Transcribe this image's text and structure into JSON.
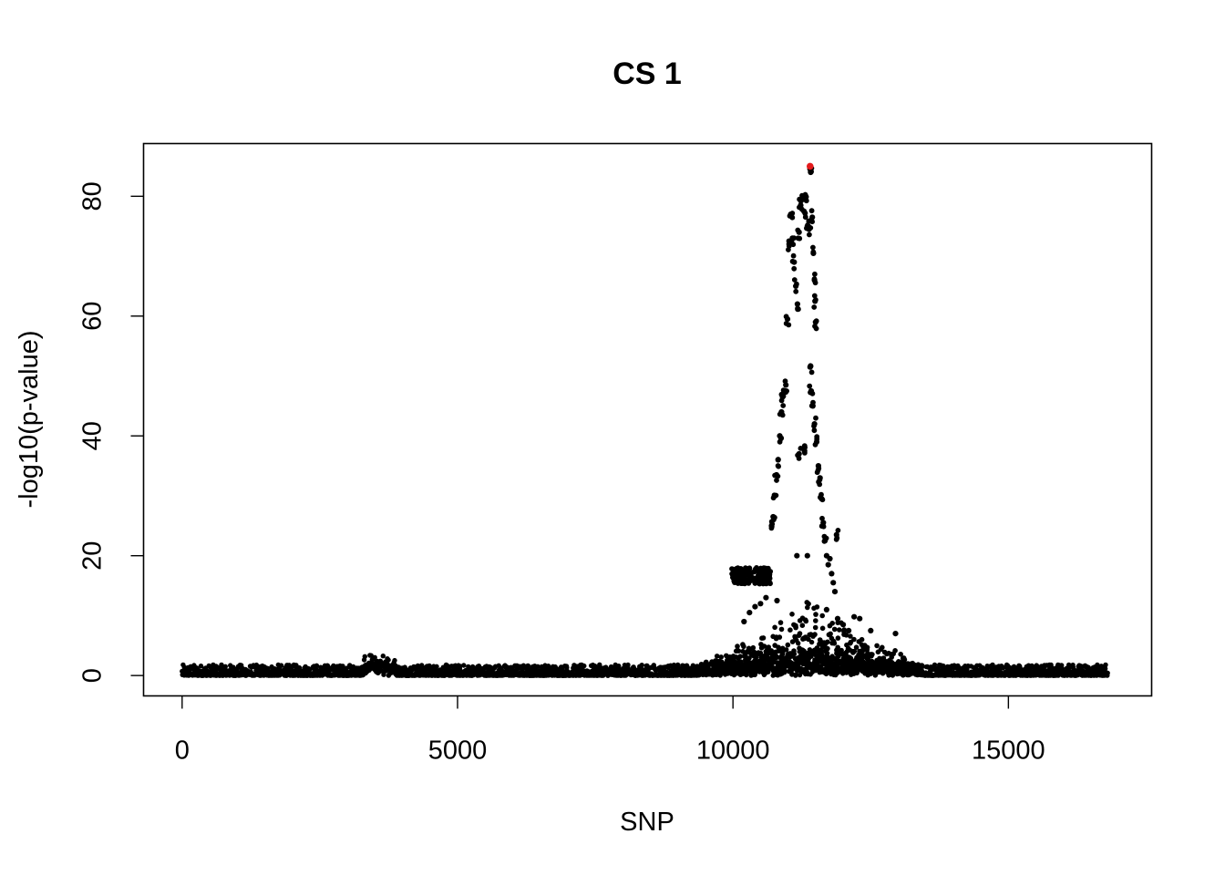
{
  "chart_data": {
    "type": "scatter",
    "title": "CS 1",
    "xlabel": "SNP",
    "ylabel": "-log10(p-value)",
    "xlim": [
      -700,
      17600
    ],
    "ylim": [
      -3.4,
      88.8
    ],
    "x_ticks": [
      0,
      5000,
      10000,
      15000
    ],
    "x_tick_labels": [
      "0",
      "5000",
      "10000",
      "15000"
    ],
    "y_ticks": [
      0,
      20,
      40,
      60,
      80
    ],
    "y_tick_labels": [
      "0",
      "20",
      "40",
      "60",
      "80"
    ],
    "grid": false,
    "legend": "none",
    "colors": {
      "points": "#000000",
      "highlight": "#e41a1c"
    },
    "n_snps": 16800,
    "highlighted_point": {
      "x": 11400,
      "y": 85.0
    },
    "peak_points": [
      {
        "x": 10010,
        "y": 16.8
      },
      {
        "x": 10050,
        "y": 16.0
      },
      {
        "x": 10100,
        "y": 17.1
      },
      {
        "x": 10150,
        "y": 15.6
      },
      {
        "x": 10200,
        "y": 16.9
      },
      {
        "x": 10250,
        "y": 15.9
      },
      {
        "x": 10300,
        "y": 17.2
      },
      {
        "x": 10350,
        "y": 16.2
      },
      {
        "x": 10400,
        "y": 17.5
      },
      {
        "x": 10450,
        "y": 16.0
      },
      {
        "x": 10500,
        "y": 17.8
      },
      {
        "x": 10550,
        "y": 16.4
      },
      {
        "x": 10600,
        "y": 17.6
      },
      {
        "x": 10650,
        "y": 15.8
      },
      {
        "x": 10700,
        "y": 25.0
      },
      {
        "x": 10730,
        "y": 26.5
      },
      {
        "x": 10760,
        "y": 30.0
      },
      {
        "x": 10790,
        "y": 33.5
      },
      {
        "x": 10820,
        "y": 36.0
      },
      {
        "x": 10850,
        "y": 40.0
      },
      {
        "x": 10880,
        "y": 44.0
      },
      {
        "x": 10900,
        "y": 46.5
      },
      {
        "x": 10930,
        "y": 47.5
      },
      {
        "x": 10960,
        "y": 48.5
      },
      {
        "x": 10990,
        "y": 59.5
      },
      {
        "x": 11020,
        "y": 72.0
      },
      {
        "x": 11050,
        "y": 77.0
      },
      {
        "x": 11080,
        "y": 73.0
      },
      {
        "x": 11110,
        "y": 69.0
      },
      {
        "x": 11140,
        "y": 65.0
      },
      {
        "x": 11170,
        "y": 62.0
      },
      {
        "x": 11200,
        "y": 74.0
      },
      {
        "x": 11230,
        "y": 78.5
      },
      {
        "x": 11260,
        "y": 79.5
      },
      {
        "x": 11290,
        "y": 77.5
      },
      {
        "x": 11320,
        "y": 80.0
      },
      {
        "x": 11350,
        "y": 75.0
      },
      {
        "x": 11380,
        "y": 74.5
      },
      {
        "x": 11410,
        "y": 84.0
      },
      {
        "x": 11440,
        "y": 76.5
      },
      {
        "x": 11460,
        "y": 70.5
      },
      {
        "x": 11480,
        "y": 66.0
      },
      {
        "x": 11490,
        "y": 62.5
      },
      {
        "x": 11500,
        "y": 59.0
      },
      {
        "x": 11400,
        "y": 51.5
      },
      {
        "x": 11420,
        "y": 47.5
      },
      {
        "x": 11450,
        "y": 45.0
      },
      {
        "x": 11480,
        "y": 42.0
      },
      {
        "x": 11520,
        "y": 39.0
      },
      {
        "x": 11550,
        "y": 35.0
      },
      {
        "x": 11580,
        "y": 33.0
      },
      {
        "x": 11610,
        "y": 29.5
      },
      {
        "x": 11640,
        "y": 25.5
      },
      {
        "x": 11670,
        "y": 22.5
      },
      {
        "x": 11700,
        "y": 20.0
      },
      {
        "x": 11730,
        "y": 18.5
      },
      {
        "x": 11760,
        "y": 19.5
      },
      {
        "x": 11790,
        "y": 17.0
      },
      {
        "x": 11820,
        "y": 15.5
      },
      {
        "x": 11850,
        "y": 14.0
      },
      {
        "x": 11880,
        "y": 23.5
      },
      {
        "x": 11300,
        "y": 37.5
      },
      {
        "x": 11200,
        "y": 37.0
      },
      {
        "x": 11160,
        "y": 20.0
      },
      {
        "x": 11350,
        "y": 20.0
      },
      {
        "x": 11700,
        "y": 11.0
      },
      {
        "x": 10800,
        "y": 12.5
      },
      {
        "x": 10600,
        "y": 13.0
      },
      {
        "x": 10500,
        "y": 12.0
      },
      {
        "x": 10400,
        "y": 11.5
      },
      {
        "x": 10300,
        "y": 10.5
      },
      {
        "x": 10200,
        "y": 9.0
      },
      {
        "x": 11900,
        "y": 9.5
      },
      {
        "x": 12000,
        "y": 8.5
      },
      {
        "x": 12100,
        "y": 7.5
      },
      {
        "x": 12200,
        "y": 9.8
      },
      {
        "x": 12300,
        "y": 9.5
      },
      {
        "x": 12500,
        "y": 7.5
      },
      {
        "x": 12950,
        "y": 7.0
      }
    ]
  }
}
